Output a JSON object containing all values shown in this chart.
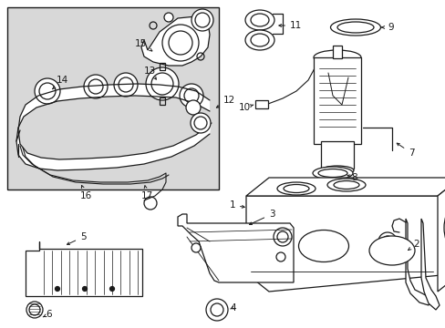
{
  "bg_color": "#ffffff",
  "box_bg": "#d8d8d8",
  "lc": "#1a1a1a",
  "lw": 0.9,
  "fs": 7.5
}
